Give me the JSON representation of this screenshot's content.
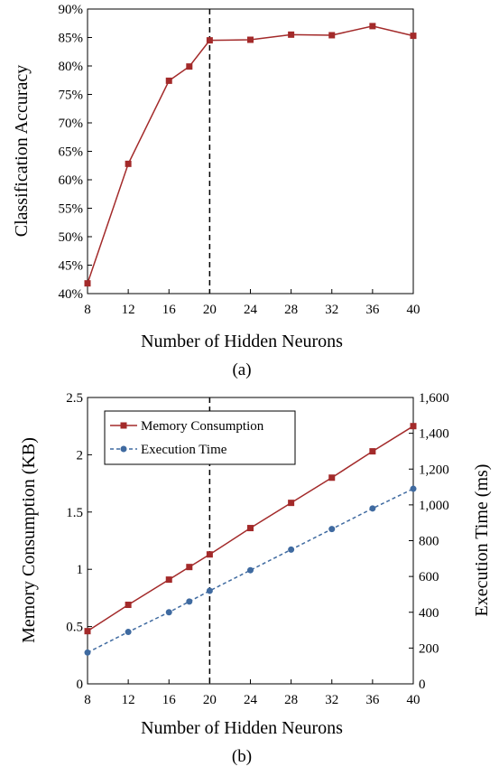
{
  "chart_data": [
    {
      "type": "line",
      "caption": "(a)",
      "xlabel": "Number of Hidden Neurons",
      "ylabel": "Classification Accuracy",
      "x": [
        8,
        12,
        16,
        18,
        20,
        24,
        28,
        32,
        36,
        40
      ],
      "xticks": [
        "8",
        "12",
        "16",
        "20",
        "24",
        "28",
        "32",
        "36",
        "40"
      ],
      "xlim": [
        8,
        40
      ],
      "ylim": [
        40,
        90
      ],
      "yticks": [
        "40%",
        "45%",
        "50%",
        "55%",
        "60%",
        "65%",
        "70%",
        "75%",
        "80%",
        "85%",
        "90%"
      ],
      "vline_x": 20,
      "series": [
        {
          "values": [
            41.8,
            62.8,
            77.4,
            79.9,
            84.5,
            84.6,
            85.5,
            85.4,
            87.0,
            85.3
          ],
          "color": "#a32a2a",
          "marker": "square",
          "dash": "solid"
        }
      ]
    },
    {
      "type": "line",
      "caption": "(b)",
      "xlabel": "Number of Hidden Neurons",
      "ylabel": "Memory Consumption  (KB)",
      "ylabel_right": "Execution Time  (ms)",
      "x": [
        8,
        12,
        16,
        18,
        20,
        24,
        28,
        32,
        36,
        40
      ],
      "xticks": [
        "8",
        "12",
        "16",
        "20",
        "24",
        "28",
        "32",
        "36",
        "40"
      ],
      "xlim": [
        8,
        40
      ],
      "ylim": [
        0,
        2.5
      ],
      "ylim_right": [
        0,
        1600
      ],
      "yticks": [
        "0",
        "0.5",
        "1",
        "1.5",
        "2",
        "2.5"
      ],
      "yticks_right": [
        "0",
        "200",
        "400",
        "600",
        "800",
        "1,000",
        "1,200",
        "1,400",
        "1,600"
      ],
      "vline_x": 20,
      "legend_position": "top-left",
      "series": [
        {
          "name": "Memory Consumption",
          "axis": "left",
          "values": [
            0.46,
            0.69,
            0.91,
            1.02,
            1.13,
            1.36,
            1.58,
            1.8,
            2.03,
            2.25
          ],
          "color": "#a32a2a",
          "marker": "square",
          "dash": "solid"
        },
        {
          "name": "Execution Time",
          "axis": "right",
          "values": [
            175,
            290,
            400,
            460,
            520,
            635,
            750,
            865,
            980,
            1090
          ],
          "color": "#3f6aa0",
          "marker": "circle",
          "dash": "dashed"
        }
      ]
    }
  ]
}
